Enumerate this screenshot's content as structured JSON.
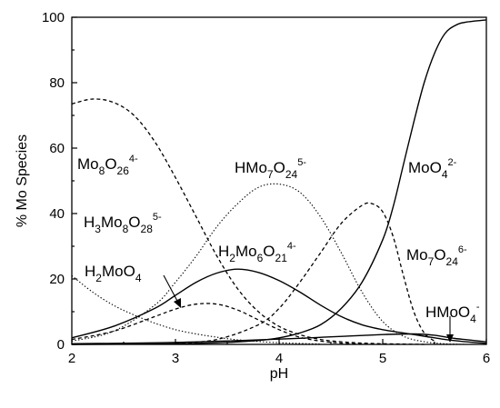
{
  "chart_data": {
    "type": "line",
    "xlabel": "pH",
    "ylabel": "% Mo Species",
    "xlim": [
      2,
      6
    ],
    "ylim": [
      0,
      100
    ],
    "x_ticks": [
      2,
      3,
      4,
      5,
      6
    ],
    "y_ticks": [
      0,
      20,
      40,
      60,
      80,
      100
    ],
    "grid": false,
    "series": [
      {
        "name": "Mo8O26 4-",
        "style": "dashed",
        "x": [
          2.0,
          2.2,
          2.4,
          2.6,
          2.8,
          3.0,
          3.2,
          3.4,
          3.6,
          3.8,
          4.0,
          4.2,
          4.4,
          4.6,
          4.8,
          5.0,
          5.2,
          5.4
        ],
        "y": [
          73.5,
          75,
          74,
          70,
          62,
          51,
          39,
          27,
          17,
          10,
          5.5,
          3,
          1.5,
          0.8,
          0.4,
          0.2,
          0.1,
          0
        ]
      },
      {
        "name": "HMo7O24 5-",
        "style": "dotted",
        "x": [
          2.0,
          2.4,
          2.8,
          3.0,
          3.2,
          3.4,
          3.6,
          3.8,
          4.0,
          4.2,
          4.4,
          4.6,
          4.8,
          5.0,
          5.2,
          5.4,
          5.6,
          5.8
        ],
        "y": [
          1.0,
          4,
          12,
          19,
          27,
          36,
          43,
          48,
          49,
          46.5,
          39,
          28,
          16,
          7,
          2.5,
          0.8,
          0.2,
          0
        ]
      },
      {
        "name": "MoO4 2-",
        "style": "solid",
        "x": [
          2.0,
          3.0,
          3.5,
          3.8,
          4.0,
          4.2,
          4.4,
          4.6,
          4.8,
          5.0,
          5.1,
          5.2,
          5.3,
          5.4,
          5.5,
          5.6,
          5.7,
          5.8,
          6.0
        ],
        "y": [
          0,
          0.2,
          0.6,
          1.2,
          2,
          3.5,
          6,
          11,
          19,
          32,
          42,
          55,
          68,
          80,
          89,
          95,
          97.5,
          98.5,
          99.2
        ]
      },
      {
        "name": "H3Mo8O28 5-",
        "style": "dashed",
        "x": [
          2.0,
          2.4,
          2.8,
          3.0,
          3.2,
          3.4,
          3.6,
          3.8,
          4.0,
          4.2,
          4.4,
          4.6,
          4.8
        ],
        "y": [
          1.5,
          4,
          8.5,
          10.8,
          12.3,
          12.3,
          10.5,
          7.5,
          4.5,
          2.2,
          1,
          0.4,
          0.1
        ]
      },
      {
        "name": "H2Mo6O21 4-",
        "style": "solid",
        "x": [
          2.0,
          2.4,
          2.8,
          3.0,
          3.2,
          3.4,
          3.6,
          3.8,
          4.0,
          4.2,
          4.4,
          4.6,
          4.8,
          5.0,
          5.2,
          5.4,
          5.6,
          5.8,
          6.0
        ],
        "y": [
          2,
          5.5,
          11,
          15,
          19,
          21.8,
          23,
          22,
          19.5,
          16,
          12,
          8.5,
          6,
          4.5,
          3.5,
          2.5,
          1.5,
          0.8,
          0.3
        ]
      },
      {
        "name": "Mo7O24 6-",
        "style": "dashed",
        "x": [
          3.0,
          3.4,
          3.8,
          4.0,
          4.2,
          4.4,
          4.6,
          4.8,
          4.9,
          5.0,
          5.1,
          5.2,
          5.3,
          5.4,
          5.5
        ],
        "y": [
          0.3,
          1.5,
          6,
          11,
          19,
          28,
          37,
          42.5,
          43,
          40.5,
          33,
          21,
          10,
          3.5,
          1
        ]
      },
      {
        "name": "H2MoO4",
        "style": "dotted",
        "x": [
          2.0,
          2.2,
          2.4,
          2.6,
          2.8,
          3.0,
          3.2,
          3.4,
          3.6,
          3.8,
          4.0,
          4.4
        ],
        "y": [
          21,
          16,
          12,
          9,
          6.5,
          4.5,
          3.2,
          2.2,
          1.4,
          0.9,
          0.5,
          0.1
        ]
      },
      {
        "name": "HMoO4 -",
        "style": "solid",
        "x": [
          2.0,
          3.0,
          4.0,
          4.5,
          5.0,
          5.3,
          5.5,
          5.7,
          6.0
        ],
        "y": [
          0.2,
          0.6,
          1.6,
          2.3,
          3,
          3.2,
          2.8,
          1.8,
          0.8
        ]
      }
    ]
  },
  "labels": [
    {
      "id": "mo8o26",
      "text": "Mo",
      "sub": "8",
      "mid": "O",
      "sub2": "26",
      "sup": "4-"
    },
    {
      "id": "hmo7o24",
      "text": "HMo",
      "sub": "7",
      "mid": "O",
      "sub2": "24",
      "sup": "5-"
    },
    {
      "id": "moo4",
      "text": "MoO",
      "sub": "4",
      "mid": "",
      "sub2": "",
      "sup": "2-"
    },
    {
      "id": "h3mo8o28",
      "text": "H",
      "sub": "3",
      "mid": "Mo",
      "sub2": "8",
      "mid2": "O",
      "sub3": "28",
      "sup": "5-"
    },
    {
      "id": "h2mo6o21",
      "text": "H",
      "sub": "2",
      "mid": "Mo",
      "sub2": "6",
      "mid2": "O",
      "sub3": "21",
      "sup": "4-"
    },
    {
      "id": "h2moo4",
      "text": "H",
      "sub": "2",
      "mid": "MoO",
      "sub2": "4",
      "sup": ""
    },
    {
      "id": "mo7o24",
      "text": "Mo",
      "sub": "7",
      "mid": "O",
      "sub2": "24",
      "sup": "6-"
    },
    {
      "id": "hmoo4",
      "text": "HMoO",
      "sub": "4",
      "mid": "",
      "sub2": "",
      "sup": "-"
    }
  ]
}
